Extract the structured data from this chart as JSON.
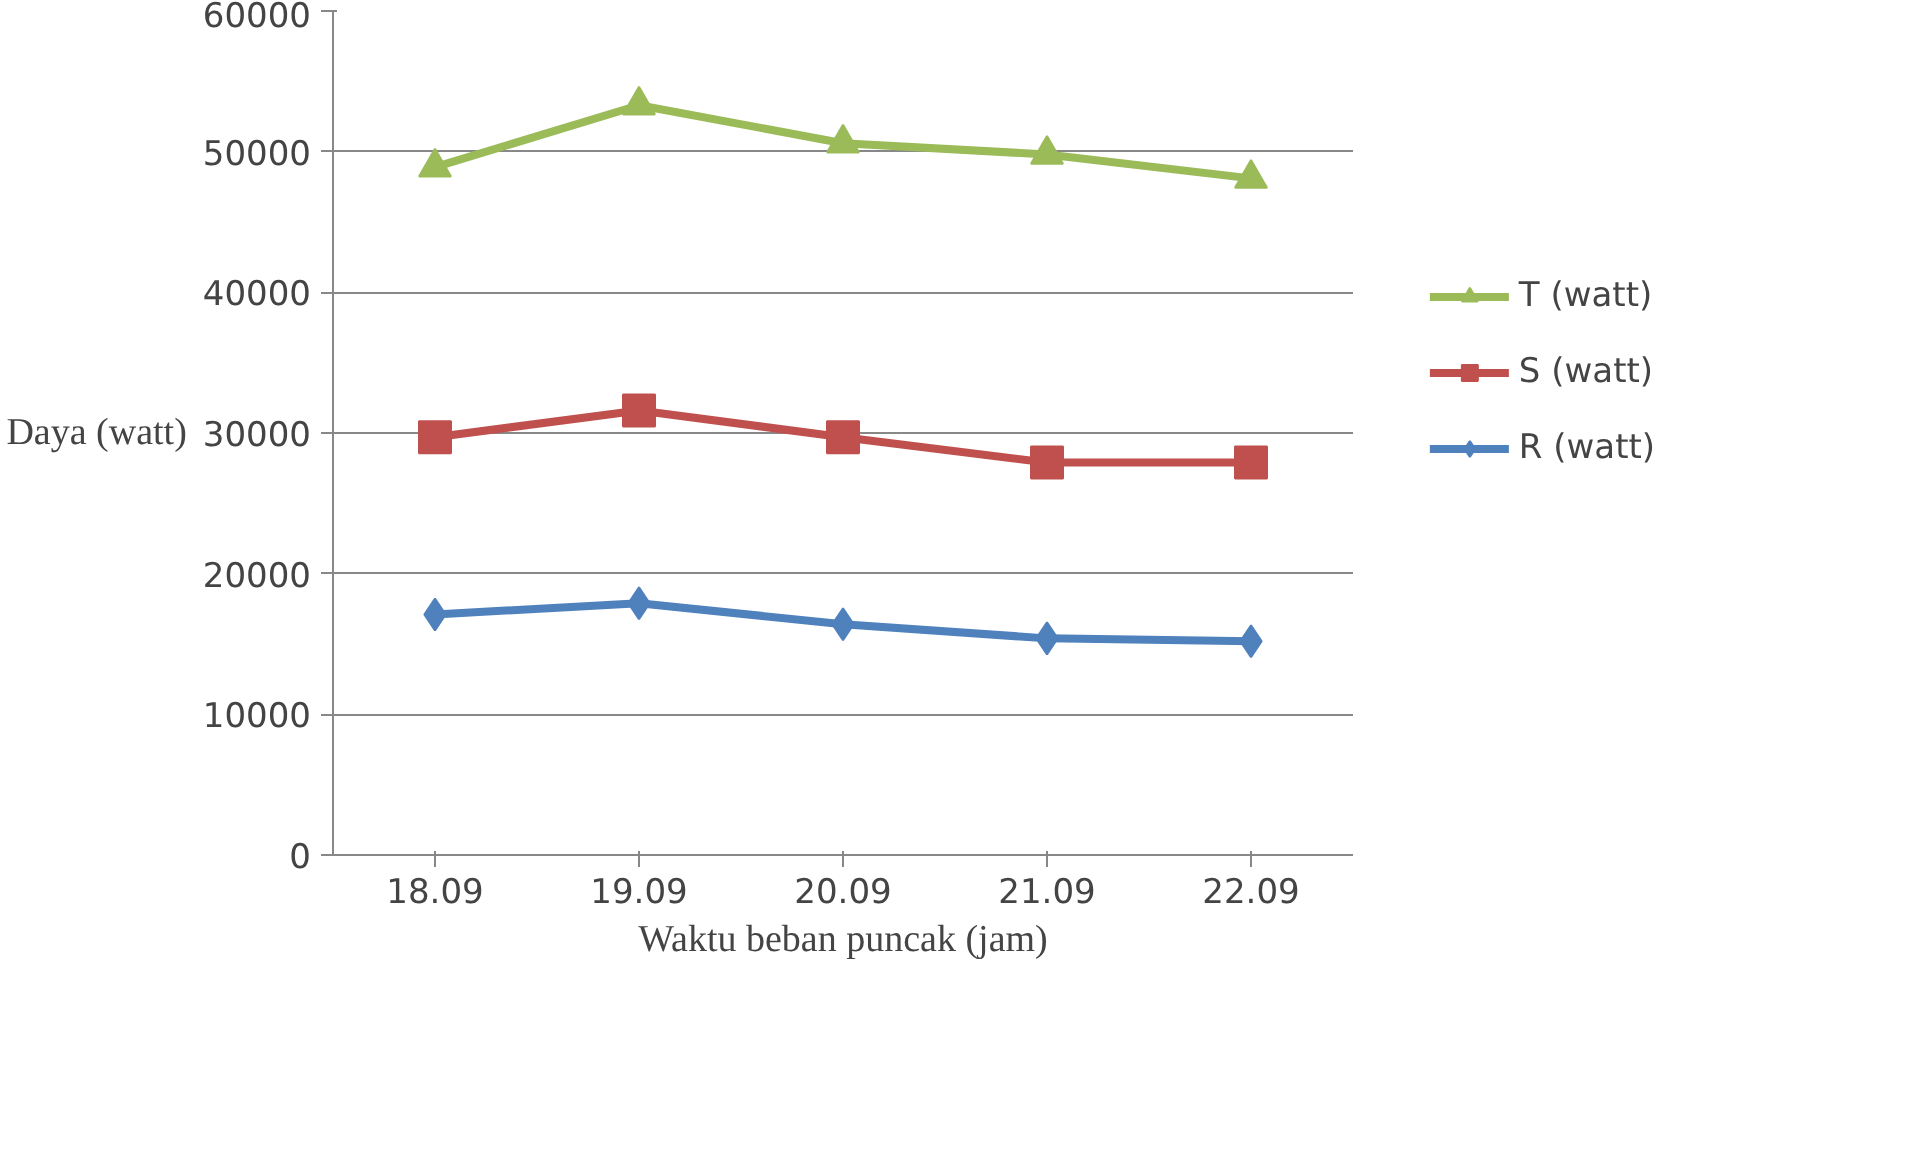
{
  "chart_data": {
    "type": "line",
    "xlabel": "Waktu beban puncak (jam)",
    "ylabel": "Daya (watt)",
    "categories": [
      "18.09",
      "19.09",
      "20.09",
      "21.09",
      "22.09"
    ],
    "ylim": [
      0,
      60000
    ],
    "yticks": [
      0,
      10000,
      20000,
      30000,
      40000,
      50000,
      60000
    ],
    "grid": "y",
    "legend": "right",
    "series": [
      {
        "name": "T (watt)",
        "color": "#9bbb59",
        "marker": "triangle",
        "values": [
          48900,
          53300,
          50600,
          49800,
          48100
        ]
      },
      {
        "name": "S (watt)",
        "color": "#c0504d",
        "marker": "square",
        "values": [
          29700,
          31600,
          29700,
          27900,
          27900
        ]
      },
      {
        "name": "R (watt)",
        "color": "#4f81bd",
        "marker": "diamond",
        "values": [
          17100,
          17900,
          16400,
          15400,
          15200
        ]
      }
    ]
  }
}
